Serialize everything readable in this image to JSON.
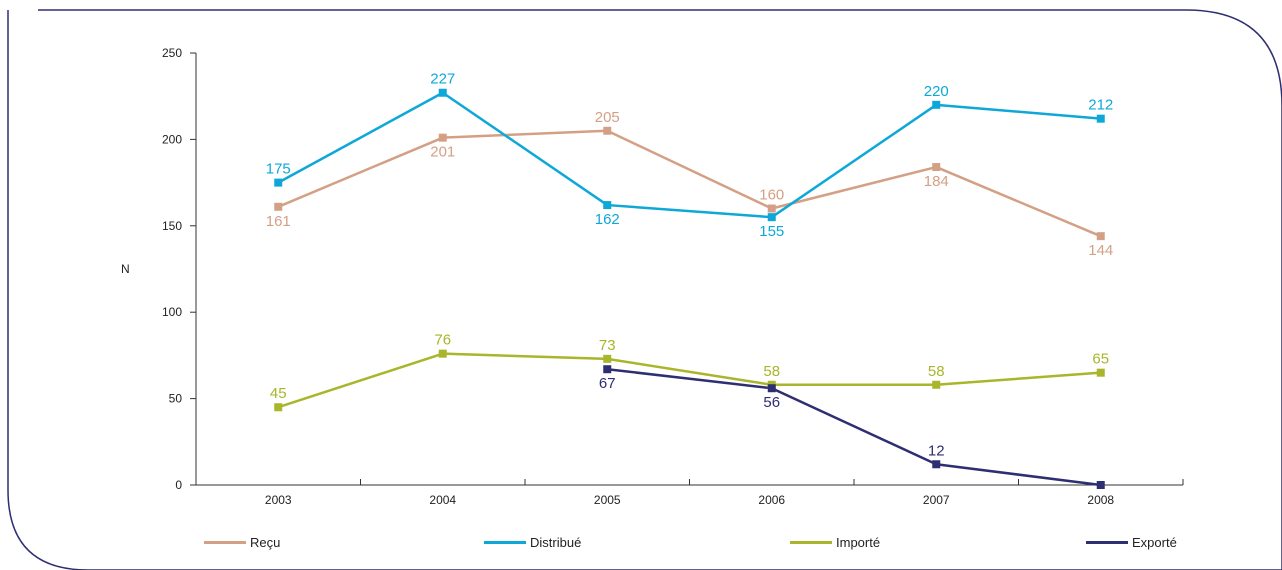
{
  "chart_data": {
    "type": "line",
    "ylabel": "N",
    "xlabel": "",
    "categories": [
      "2003",
      "2004",
      "2005",
      "2006",
      "2007",
      "2008"
    ],
    "ylim": [
      0,
      250
    ],
    "yticks": [
      "0",
      "50",
      "100",
      "150",
      "200",
      "250"
    ],
    "grid": false,
    "legend_position": "bottom",
    "series": [
      {
        "name": "Reçu",
        "color": "#d4a085",
        "values": [
          161,
          201,
          205,
          160,
          184,
          144
        ],
        "labels": [
          "161",
          "201",
          "205",
          "160",
          "184",
          "144"
        ]
      },
      {
        "name": "Distribué",
        "color": "#0ea8d8",
        "values": [
          175,
          227,
          162,
          155,
          220,
          212
        ],
        "labels": [
          "175",
          "227",
          "162",
          "155",
          "220",
          "212"
        ]
      },
      {
        "name": "Importé",
        "color": "#a9b52a",
        "values": [
          45,
          76,
          73,
          58,
          58,
          65
        ],
        "labels": [
          "45",
          "76",
          "73",
          "58",
          "58",
          "65"
        ]
      },
      {
        "name": "Exporté",
        "color": "#2e2e72",
        "values": [
          null,
          null,
          67,
          56,
          12,
          0
        ],
        "labels": [
          "",
          "",
          "67",
          "56",
          "12",
          ""
        ]
      }
    ]
  }
}
